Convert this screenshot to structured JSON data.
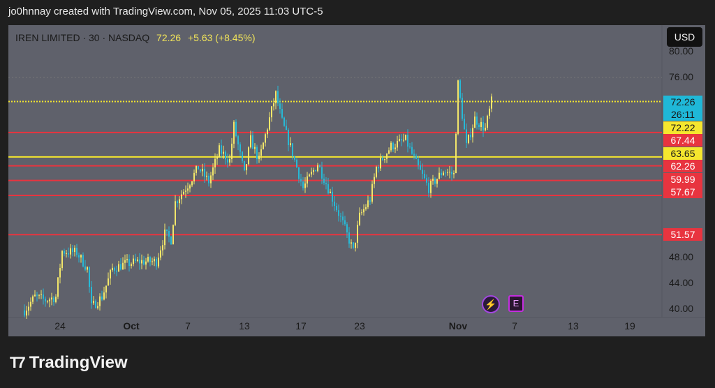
{
  "credit": "jo0hnnay created with TradingView.com, Nov 05, 2025 11:03 UTC-5",
  "legend": {
    "symbol": "IREN LIMITED · 30 · NASDAQ",
    "price": "72.26",
    "change": "+5.63 (+8.45%)"
  },
  "currency": "USD",
  "brand": "TradingView",
  "colors": {
    "up": "#f2e66a",
    "down": "#27b9d6",
    "red": "#e8343f",
    "yellow": "#f5e62e",
    "cyan": "#1fb8d8"
  },
  "chart_data": {
    "type": "candlestick",
    "title": "IREN LIMITED · 30 · NASDAQ",
    "ylim": [
      38.5,
      80.5
    ],
    "yticks": [
      "80.00",
      "76.00",
      "48.00",
      "44.00",
      "40.00"
    ],
    "xticks": [
      {
        "bar": 17,
        "label": "24"
      },
      {
        "bar": 51,
        "label": "Oct"
      },
      {
        "bar": 78,
        "label": "7"
      },
      {
        "bar": 105,
        "label": "13"
      },
      {
        "bar": 132,
        "label": "17"
      },
      {
        "bar": 160,
        "label": "23"
      },
      {
        "bar": 207,
        "label": "Nov"
      },
      {
        "bar": 234,
        "label": "7"
      },
      {
        "bar": 262,
        "label": "13"
      },
      {
        "bar": 289,
        "label": "19"
      }
    ],
    "path": [
      [
        0,
        39.8
      ],
      [
        5,
        41.9
      ],
      [
        10,
        41.4
      ],
      [
        15,
        41.9
      ],
      [
        18,
        49.0
      ],
      [
        25,
        48.8
      ],
      [
        30,
        46.3
      ],
      [
        32,
        40.3
      ],
      [
        37,
        41.9
      ],
      [
        42,
        46.3
      ],
      [
        48,
        47.0
      ],
      [
        55,
        47.4
      ],
      [
        63,
        47.4
      ],
      [
        67,
        51.7
      ],
      [
        70,
        50.8
      ],
      [
        72,
        56.6
      ],
      [
        78,
        59.3
      ],
      [
        83,
        62.0
      ],
      [
        88,
        59.8
      ],
      [
        93,
        64.7
      ],
      [
        98,
        63.1
      ],
      [
        100,
        68.5
      ],
      [
        105,
        60.9
      ],
      [
        108,
        66.3
      ],
      [
        112,
        63.1
      ],
      [
        117,
        69.6
      ],
      [
        120,
        73.4
      ],
      [
        123,
        69.1
      ],
      [
        128,
        64.2
      ],
      [
        133,
        58.8
      ],
      [
        140,
        62.6
      ],
      [
        145,
        58.8
      ],
      [
        152,
        53.3
      ],
      [
        157,
        49.0
      ],
      [
        160,
        54.4
      ],
      [
        165,
        57.1
      ],
      [
        168,
        62.0
      ],
      [
        175,
        65.3
      ],
      [
        182,
        66.3
      ],
      [
        187,
        62.6
      ],
      [
        193,
        58.8
      ],
      [
        200,
        61.5
      ],
      [
        205,
        60.9
      ],
      [
        207,
        75.0
      ],
      [
        211,
        65.3
      ],
      [
        215,
        69.6
      ],
      [
        220,
        68.0
      ],
      [
        223,
        72.26
      ]
    ],
    "levels": [
      {
        "price": 72.26,
        "color": "yellow",
        "style": "dotted",
        "label": "72.26",
        "sub": "26:11",
        "tag": "cyan"
      },
      {
        "price": 72.22,
        "color": "yellow",
        "label": "72.22",
        "tag": "yellow"
      },
      {
        "price": 67.44,
        "color": "red",
        "label": "67.44"
      },
      {
        "price": 63.65,
        "color": "yellow",
        "label": "63.65"
      },
      {
        "price": 62.26,
        "color": "red",
        "label": "62.26"
      },
      {
        "price": 59.99,
        "color": "red",
        "label": "59.99"
      },
      {
        "price": 57.67,
        "color": "red",
        "label": "57.67"
      },
      {
        "price": 51.57,
        "color": "red",
        "label": "51.57"
      }
    ]
  },
  "events": {
    "dividends_icon": "lightning",
    "earnings": "E"
  }
}
